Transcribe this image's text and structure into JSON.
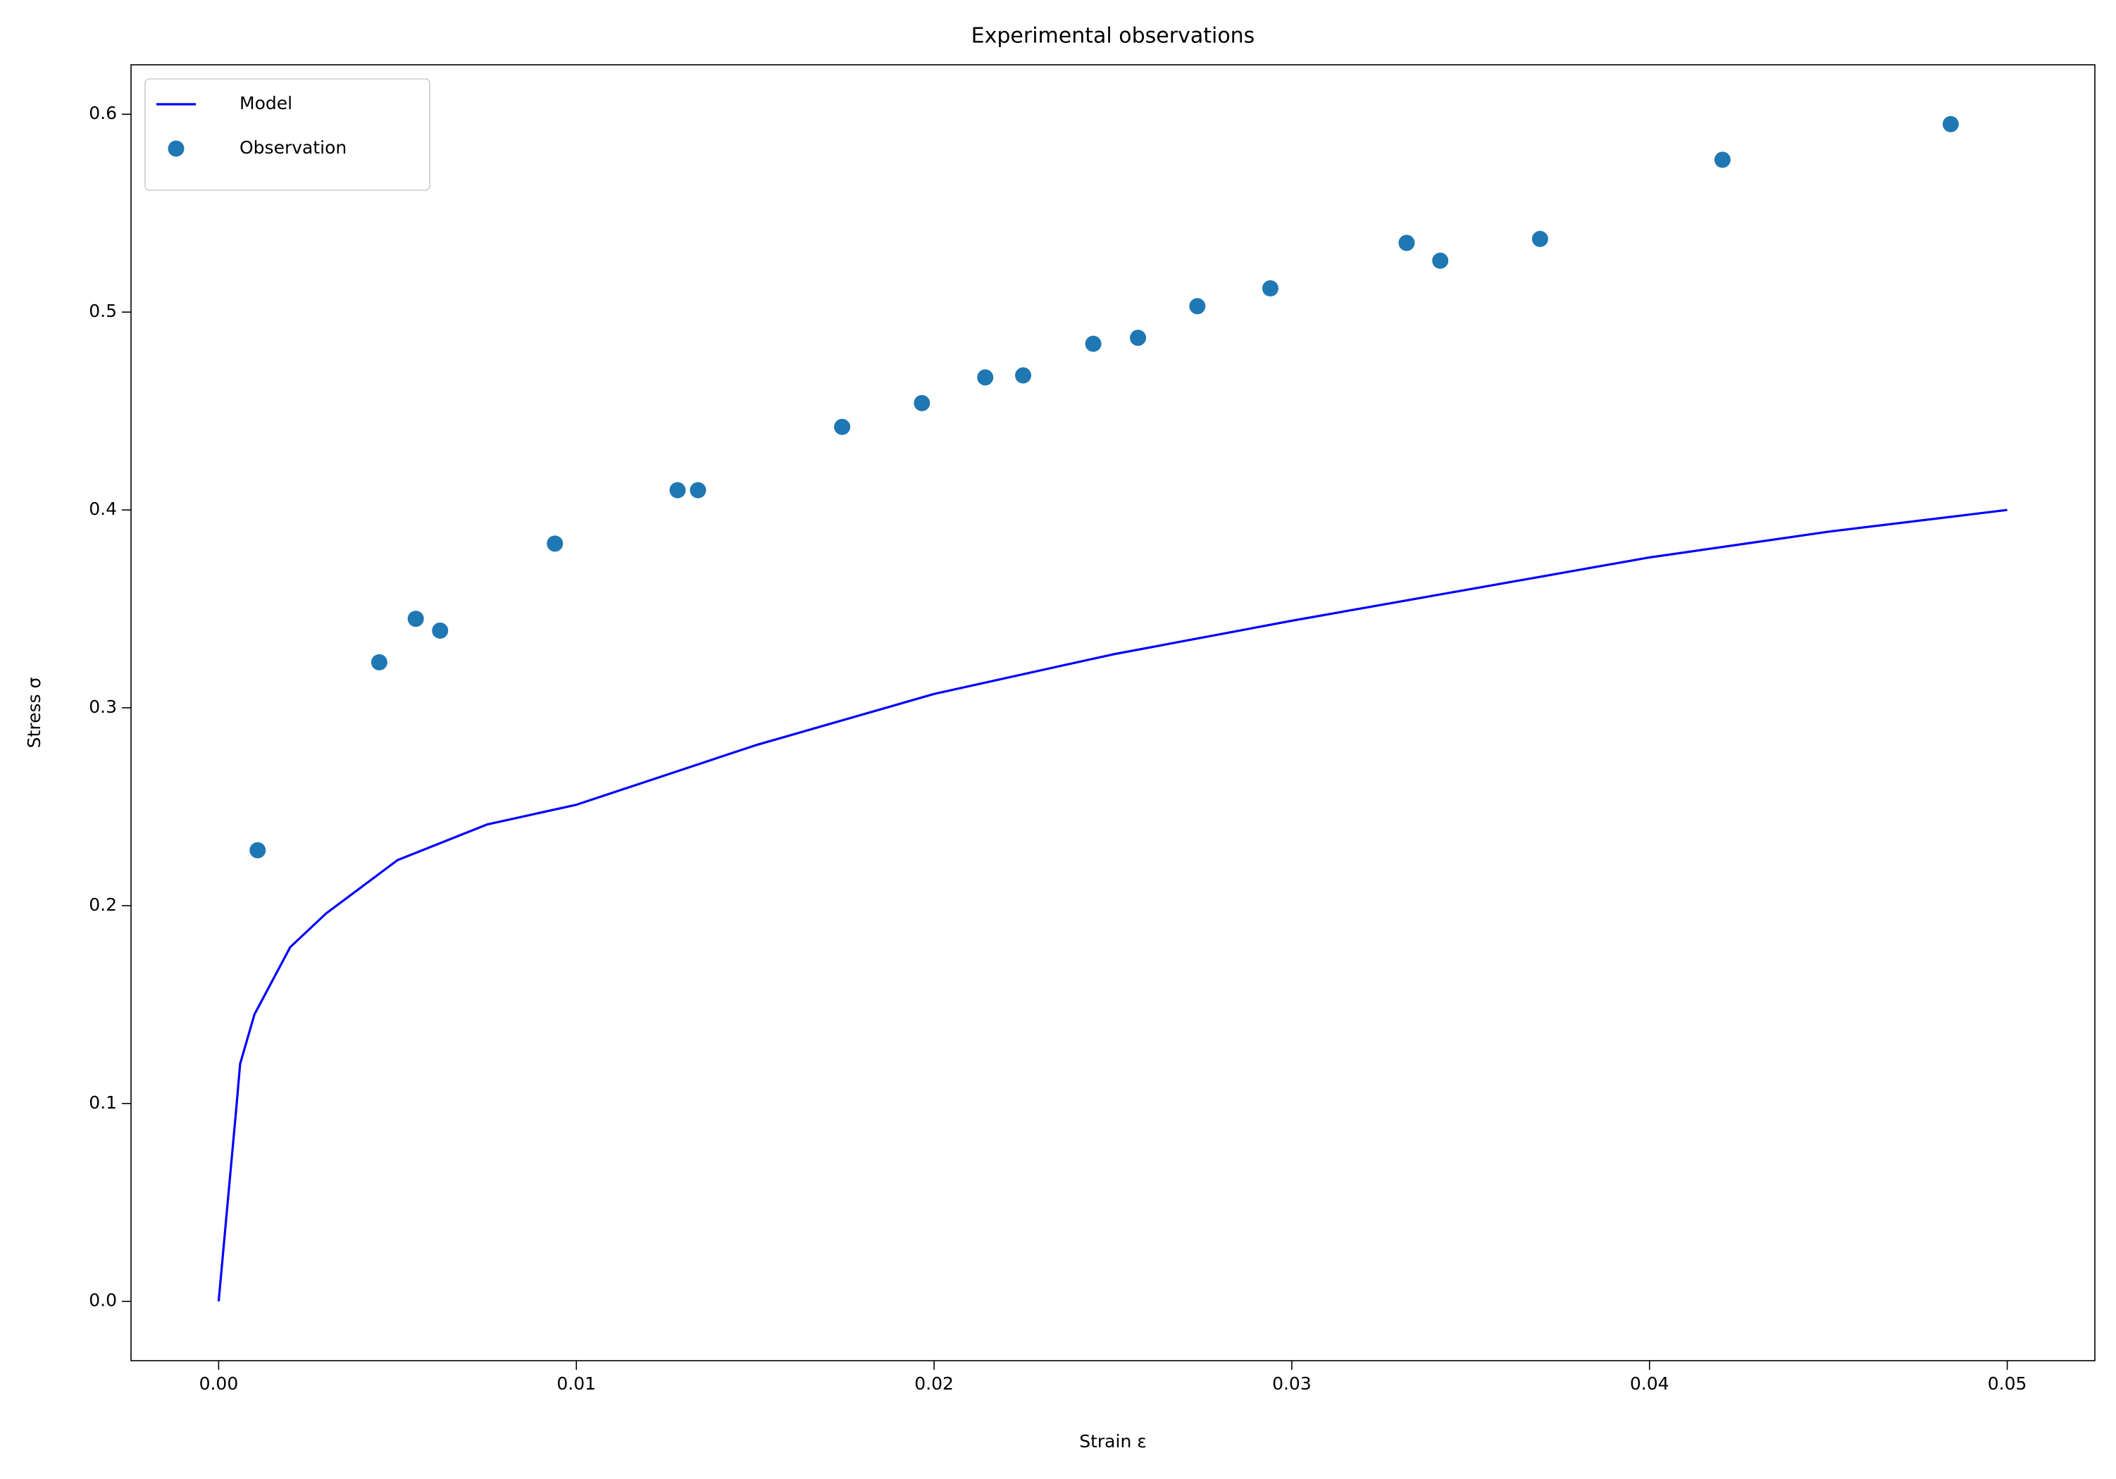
{
  "chart_data": {
    "type": "line",
    "title": "Experimental observations",
    "xlabel": "Strain ε",
    "ylabel": "Stress σ",
    "xlim": [
      -0.00245,
      0.05245
    ],
    "ylim": [
      -0.03,
      0.625
    ],
    "xticks": [
      {
        "value": 0,
        "label": "0.00"
      },
      0.01,
      0.02,
      0.03,
      0.04,
      0.05
    ],
    "yticks": [
      {
        "value": 0,
        "label": "0.0"
      },
      0.1,
      0.2,
      0.3,
      0.4,
      0.5,
      0.6
    ],
    "grid": false,
    "legend": "upper left",
    "series": [
      {
        "name": "Model",
        "type": "line",
        "color": "#0000ff",
        "x": [
          0,
          0.0005,
          0.0006,
          0.001,
          0.002,
          0.003,
          0.005,
          0.0075,
          0.01,
          0.015,
          0.02,
          0.025,
          0.03,
          0.035,
          0.04,
          0.045,
          0.05
        ],
        "values": [
          0,
          0.099,
          0.12,
          0.145,
          0.179,
          0.196,
          0.223,
          0.241,
          0.251,
          0.281,
          0.307,
          0.327,
          0.344,
          0.36,
          0.376,
          0.389,
          0.4
        ]
      },
      {
        "name": "Observation",
        "type": "scatter",
        "color": "#1f77b4",
        "x": [
          0.00109,
          0.00449,
          0.00551,
          0.00619,
          0.0094,
          0.01283,
          0.0134,
          0.01743,
          0.01966,
          0.02143,
          0.02249,
          0.02445,
          0.0257,
          0.02736,
          0.0294,
          0.03321,
          0.03415,
          0.03694,
          0.04204,
          0.04842
        ],
        "values": [
          0.228,
          0.323,
          0.345,
          0.339,
          0.383,
          0.41,
          0.41,
          0.442,
          0.454,
          0.467,
          0.468,
          0.484,
          0.487,
          0.503,
          0.512,
          0.535,
          0.526,
          0.537,
          0.577,
          0.595
        ]
      }
    ]
  }
}
